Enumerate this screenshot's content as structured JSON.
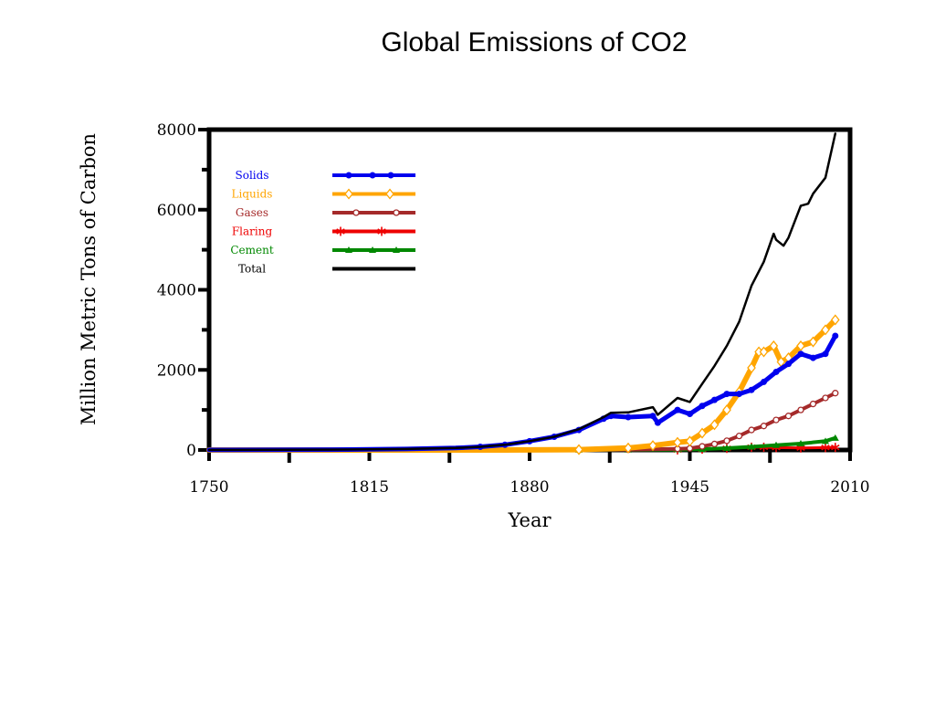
{
  "chart_data": {
    "type": "line",
    "title": "Global Emissions of CO2",
    "xlabel": "Year",
    "ylabel": "Million Metric Tons of Carbon",
    "xlim": [
      1750,
      2010
    ],
    "ylim": [
      0,
      8000
    ],
    "x_ticks": [
      1750,
      1815,
      1880,
      1945,
      2010
    ],
    "y_ticks": [
      0,
      2000,
      4000,
      6000,
      8000
    ],
    "grid": false,
    "legend_position": "top-left",
    "series": [
      {
        "name": "Solids",
        "color": "#0000ee",
        "marker": "dot",
        "x": [
          1750,
          1800,
          1830,
          1850,
          1860,
          1870,
          1880,
          1890,
          1900,
          1910,
          1913,
          1920,
          1930,
          1932,
          1940,
          1945,
          1950,
          1955,
          1960,
          1965,
          1970,
          1975,
          1980,
          1985,
          1990,
          1995,
          2000,
          2004
        ],
        "values": [
          3,
          8,
          25,
          50,
          80,
          130,
          220,
          330,
          500,
          780,
          850,
          820,
          850,
          680,
          1000,
          900,
          1100,
          1250,
          1400,
          1400,
          1500,
          1700,
          1950,
          2150,
          2400,
          2300,
          2400,
          2850
        ]
      },
      {
        "name": "Liquids",
        "color": "#ffa500",
        "marker": "diamond",
        "x": [
          1750,
          1870,
          1900,
          1920,
          1930,
          1940,
          1945,
          1950,
          1955,
          1960,
          1965,
          1970,
          1973,
          1975,
          1979,
          1982,
          1985,
          1990,
          1995,
          2000,
          2004
        ],
        "values": [
          0,
          1,
          10,
          50,
          110,
          190,
          220,
          420,
          630,
          1000,
          1450,
          2050,
          2450,
          2450,
          2600,
          2200,
          2300,
          2600,
          2700,
          3000,
          3250
        ]
      },
      {
        "name": "Gases",
        "color": "#a52a2a",
        "marker": "circle",
        "x": [
          1750,
          1900,
          1920,
          1940,
          1945,
          1950,
          1955,
          1960,
          1965,
          1970,
          1975,
          1980,
          1985,
          1990,
          1995,
          2000,
          2004
        ],
        "values": [
          0,
          2,
          8,
          30,
          40,
          90,
          150,
          230,
          350,
          500,
          600,
          750,
          850,
          1000,
          1150,
          1300,
          1420
        ]
      },
      {
        "name": "Flaring",
        "color": "#ee0000",
        "marker": "asterisk",
        "x": [
          1750,
          1940,
          1950,
          1960,
          1970,
          1975,
          1980,
          1990,
          2000,
          2004
        ],
        "values": [
          0,
          2,
          20,
          40,
          70,
          70,
          60,
          50,
          60,
          65
        ]
      },
      {
        "name": "Cement",
        "color": "#008800",
        "marker": "triangle",
        "x": [
          1750,
          1900,
          1920,
          1940,
          1950,
          1960,
          1970,
          1980,
          1990,
          2000,
          2004
        ],
        "values": [
          0,
          2,
          5,
          10,
          20,
          45,
          80,
          120,
          160,
          220,
          300
        ]
      },
      {
        "name": "Total",
        "color": "#000000",
        "marker": "none",
        "x": [
          1750,
          1800,
          1830,
          1850,
          1860,
          1870,
          1880,
          1890,
          1900,
          1910,
          1913,
          1920,
          1930,
          1932,
          1940,
          1945,
          1950,
          1955,
          1960,
          1965,
          1970,
          1975,
          1979,
          1980,
          1983,
          1985,
          1990,
          1993,
          1995,
          2000,
          2004
        ],
        "values": [
          3,
          8,
          25,
          50,
          80,
          130,
          220,
          330,
          520,
          820,
          930,
          940,
          1070,
          880,
          1300,
          1200,
          1650,
          2100,
          2600,
          3200,
          4100,
          4700,
          5400,
          5250,
          5100,
          5300,
          6100,
          6150,
          6400,
          6800,
          7900
        ]
      }
    ]
  }
}
